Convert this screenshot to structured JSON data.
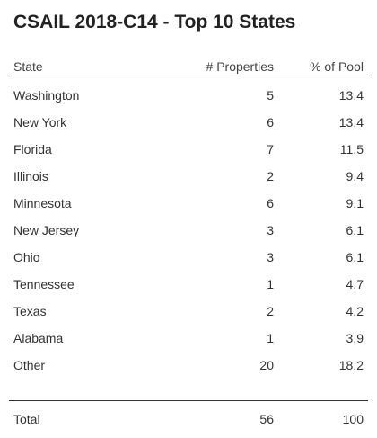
{
  "chart_data": {
    "type": "table",
    "title": "CSAIL 2018-C14 - Top 10 States",
    "columns": [
      "State",
      "# Properties",
      "% of Pool"
    ],
    "rows": [
      {
        "state": "Washington",
        "properties": "5",
        "pct": "13.4"
      },
      {
        "state": "New York",
        "properties": "6",
        "pct": "13.4"
      },
      {
        "state": "Florida",
        "properties": "7",
        "pct": "11.5"
      },
      {
        "state": "Illinois",
        "properties": "2",
        "pct": "9.4"
      },
      {
        "state": "Minnesota",
        "properties": "6",
        "pct": "9.1"
      },
      {
        "state": "New Jersey",
        "properties": "3",
        "pct": "6.1"
      },
      {
        "state": "Ohio",
        "properties": "3",
        "pct": "6.1"
      },
      {
        "state": "Tennessee",
        "properties": "1",
        "pct": "4.7"
      },
      {
        "state": "Texas",
        "properties": "2",
        "pct": "4.2"
      },
      {
        "state": "Alabama",
        "properties": "1",
        "pct": "3.9"
      },
      {
        "state": "Other",
        "properties": "20",
        "pct": "18.2"
      }
    ],
    "total": {
      "label": "Total",
      "properties": "56",
      "pct": "100"
    }
  }
}
